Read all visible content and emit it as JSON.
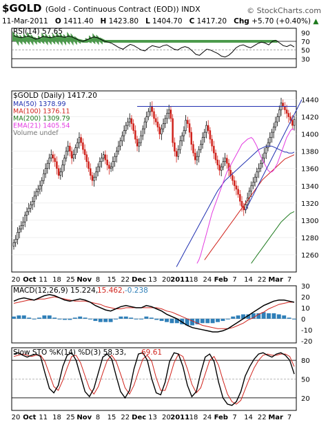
{
  "header": {
    "symbol": "$GOLD",
    "description": "(Gold - Continuous Contract (EOD)) INDX",
    "watermark": "© StockCharts.com",
    "date": "11-Mar-2011",
    "open_label": "O",
    "open": "1411.40",
    "high_label": "H",
    "high": "1423.80",
    "low_label": "L",
    "low": "1404.70",
    "close_label": "C",
    "close": "1417.20",
    "chg_label": "Chg",
    "chg": "+5.70 (+0.40%)",
    "chg_arrow": "▲"
  },
  "colors": {
    "ma50": "#1f2fb0",
    "ma100": "#d0231c",
    "ma200": "#1e7a1e",
    "ema21": "#e23ae0",
    "candle": "#000000",
    "candle_down": "#d0231c",
    "trendline": "#1f2fb0",
    "rsi_fill": "#4c9a4c",
    "macd_hist": "#2f7fb8",
    "macd": "#000000",
    "signal": "#d0231c",
    "sto_k": "#000000",
    "sto_d": "#d0231c"
  },
  "chart_data": [
    {
      "type": "line",
      "title": "RSI(14) 57.65",
      "ylim": [
        10,
        100
      ],
      "ticks": [
        90,
        70,
        50,
        30
      ],
      "values": [
        83,
        80,
        78,
        80,
        82,
        79,
        75,
        77,
        81,
        80,
        78,
        80,
        82,
        81,
        79,
        82,
        80,
        76,
        72,
        70,
        73,
        77,
        80,
        78,
        74,
        70,
        68,
        65,
        60,
        55,
        52,
        58,
        63,
        60,
        55,
        50,
        48,
        55,
        60,
        58,
        56,
        60,
        62,
        57,
        52,
        50,
        55,
        58,
        55,
        48,
        40,
        38,
        45,
        52,
        50,
        46,
        42,
        36,
        34,
        38,
        45,
        55,
        60,
        62,
        58,
        55,
        60,
        65,
        68,
        66,
        62,
        70,
        72,
        66,
        60,
        58,
        62,
        57
      ]
    },
    {
      "type": "candlestick",
      "title": "$GOLD (Daily) 1417.20",
      "ylim": [
        1240,
        1450
      ],
      "ticks": [
        1260,
        1280,
        1300,
        1320,
        1340,
        1360,
        1380,
        1400,
        1420,
        1440
      ],
      "x_ticks": [
        "20",
        "Oct",
        "11",
        "18",
        "25",
        "Nov",
        "8",
        "15",
        "22",
        "Dec",
        "13",
        "20",
        "2011",
        "18",
        "24",
        "Feb",
        "7",
        "14",
        "22",
        "Mar",
        "7"
      ],
      "legend": [
        "MA(50) 1378.99",
        "MA(100) 1376.11",
        "MA(200) 1309.79",
        "EMA(21) 1405.54",
        "Volume undef"
      ],
      "close": [
        1274,
        1278,
        1286,
        1290,
        1294,
        1298,
        1306,
        1310,
        1314,
        1318,
        1322,
        1328,
        1333,
        1336,
        1340,
        1346,
        1354,
        1360,
        1366,
        1372,
        1376,
        1372,
        1368,
        1360,
        1352,
        1356,
        1364,
        1372,
        1380,
        1386,
        1380,
        1372,
        1376,
        1384,
        1390,
        1396,
        1390,
        1382,
        1376,
        1368,
        1360,
        1352,
        1346,
        1350,
        1356,
        1362,
        1368,
        1372,
        1376,
        1370,
        1364,
        1360,
        1362,
        1368,
        1374,
        1380,
        1386,
        1392,
        1398,
        1404,
        1410,
        1414,
        1418,
        1412,
        1404,
        1394,
        1386,
        1390,
        1398,
        1406,
        1414,
        1420,
        1426,
        1432,
        1426,
        1418,
        1414,
        1408,
        1400,
        1406,
        1412,
        1418,
        1424,
        1428,
        1418,
        1390,
        1380,
        1374,
        1382,
        1392,
        1398,
        1404,
        1416,
        1412,
        1402,
        1388,
        1378,
        1370,
        1374,
        1382,
        1388,
        1396,
        1402,
        1410,
        1404,
        1394,
        1386,
        1378,
        1370,
        1364,
        1358,
        1362,
        1368,
        1372,
        1366,
        1358,
        1352,
        1346,
        1340,
        1336,
        1330,
        1322,
        1316,
        1312,
        1318,
        1326,
        1334,
        1340,
        1344,
        1350,
        1356,
        1360,
        1366,
        1372,
        1378,
        1384,
        1390,
        1396,
        1402,
        1408,
        1414,
        1420,
        1428,
        1436,
        1432,
        1428,
        1424,
        1420,
        1416,
        1410,
        1417
      ],
      "ma50": [
        1246,
        1250,
        1254,
        1258,
        1262,
        1266,
        1270,
        1274,
        1278,
        1282,
        1286,
        1290,
        1294,
        1298,
        1302,
        1306,
        1310,
        1314,
        1318,
        1322,
        1326,
        1330,
        1334,
        1337,
        1340,
        1343,
        1346,
        1348,
        1350,
        1352,
        1354,
        1356,
        1358,
        1360,
        1362,
        1364,
        1366,
        1368,
        1370,
        1372,
        1374,
        1376,
        1378,
        1380,
        1382,
        1383,
        1384,
        1385,
        1386,
        1386,
        1386,
        1386,
        1385,
        1384,
        1383,
        1382,
        1381,
        1380,
        1379,
        1379,
        1378,
        1378,
        1378,
        1379
      ],
      "ma100": [
        1254,
        1257,
        1260,
        1263,
        1266,
        1269,
        1272,
        1275,
        1278,
        1281,
        1284,
        1287,
        1290,
        1293,
        1296,
        1299,
        1302,
        1305,
        1308,
        1311,
        1314,
        1317,
        1320,
        1323,
        1326,
        1329,
        1332,
        1335,
        1338,
        1341,
        1344,
        1347,
        1349,
        1351,
        1353,
        1355,
        1357,
        1359,
        1361,
        1363,
        1365,
        1367,
        1369,
        1371,
        1372,
        1373,
        1374,
        1375,
        1376
      ],
      "ma200": [
        1250,
        1253,
        1256,
        1259,
        1262,
        1265,
        1268,
        1271,
        1274,
        1277,
        1280,
        1283,
        1286,
        1289,
        1292,
        1295,
        1298,
        1300,
        1302,
        1304,
        1306,
        1308,
        1309,
        1310
      ],
      "ema21": [
        1250,
        1254,
        1260,
        1268,
        1276,
        1284,
        1292,
        1300,
        1308,
        1314,
        1320,
        1326,
        1332,
        1338,
        1344,
        1350,
        1356,
        1360,
        1364,
        1368,
        1372,
        1376,
        1380,
        1384,
        1388,
        1390,
        1392,
        1394,
        1395,
        1396,
        1394,
        1390,
        1386,
        1380,
        1374,
        1370,
        1366,
        1362,
        1358,
        1356,
        1356,
        1358,
        1362,
        1366,
        1372,
        1378,
        1384,
        1390,
        1396,
        1400,
        1404,
        1406,
        1405
      ]
    },
    {
      "type": "line",
      "title": "MACD(12,26,9) 15.224, 15.462, -0.238",
      "ylim": [
        -22,
        30
      ],
      "ticks": [
        30,
        20,
        10,
        0,
        -10,
        -20
      ],
      "macd": [
        16,
        18,
        19,
        18,
        17,
        19,
        21,
        22,
        21,
        19,
        17,
        16,
        17,
        18,
        17,
        15,
        12,
        10,
        8,
        7,
        9,
        11,
        12,
        11,
        10,
        10,
        12,
        11,
        9,
        7,
        4,
        2,
        0,
        -3,
        -6,
        -8,
        -9,
        -10,
        -11,
        -12,
        -12,
        -11,
        -9,
        -6,
        -3,
        0,
        3,
        6,
        9,
        12,
        14,
        16,
        17,
        17,
        16,
        15
      ],
      "signal": [
        14,
        15,
        16,
        17,
        17,
        18,
        18,
        19,
        20,
        19,
        18,
        17,
        16,
        16,
        16,
        15,
        14,
        13,
        11,
        10,
        9,
        9,
        10,
        10,
        10,
        10,
        10,
        10,
        10,
        9,
        7,
        6,
        4,
        2,
        0,
        -2,
        -4,
        -6,
        -7,
        -8,
        -9,
        -9,
        -9,
        -8,
        -6,
        -4,
        -1,
        1,
        4,
        6,
        9,
        11,
        13,
        14,
        15,
        15
      ],
      "series_labels": [
        "MACD(12,26,9) 15.224,",
        "15.462,",
        "-0.238"
      ]
    },
    {
      "type": "line",
      "title": "Slow STO %K(14) %D(3) 58.33, 69.61",
      "ylim": [
        0,
        100
      ],
      "ticks": [
        80,
        50,
        20
      ],
      "k": [
        90,
        92,
        88,
        85,
        88,
        90,
        86,
        60,
        35,
        28,
        40,
        70,
        88,
        92,
        80,
        55,
        30,
        22,
        35,
        60,
        85,
        90,
        82,
        55,
        30,
        20,
        32,
        66,
        90,
        92,
        80,
        50,
        28,
        25,
        45,
        78,
        92,
        90,
        70,
        40,
        22,
        30,
        60,
        85,
        90,
        78,
        45,
        20,
        10,
        8,
        14,
        30,
        55,
        70,
        82,
        90,
        92,
        88,
        85,
        90,
        92,
        88,
        80,
        58
      ],
      "d": [
        86,
        88,
        90,
        88,
        86,
        88,
        88,
        78,
        58,
        38,
        32,
        48,
        68,
        86,
        88,
        76,
        55,
        35,
        26,
        38,
        60,
        80,
        88,
        78,
        58,
        36,
        26,
        40,
        62,
        82,
        88,
        78,
        52,
        32,
        32,
        52,
        76,
        90,
        86,
        66,
        42,
        28,
        36,
        58,
        80,
        86,
        72,
        48,
        26,
        14,
        10,
        16,
        34,
        52,
        68,
        80,
        88,
        90,
        88,
        88,
        90,
        90,
        86,
        70
      ],
      "series_labels": [
        "Slow STO %K(14) %D(3) 58.33,",
        "69.61"
      ]
    }
  ]
}
